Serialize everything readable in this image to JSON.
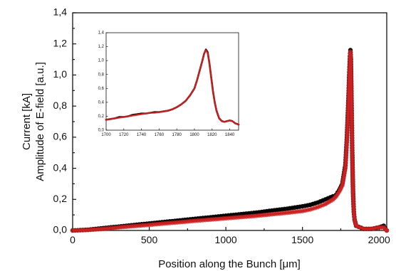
{
  "chart_data": [
    {
      "id": "main",
      "type": "scatter",
      "title": "",
      "xlabel": "Position along the Bunch [μm]",
      "ylabel_lines": [
        "Current [kA]",
        "Amplitude of E-field [a.u.]"
      ],
      "xlim": [
        0,
        2050
      ],
      "ylim": [
        0,
        1.4
      ],
      "xticks": [
        0,
        500,
        1000,
        1500,
        2000
      ],
      "xtick_labels": [
        "0",
        "500",
        "1000",
        "1500",
        "2000"
      ],
      "yticks": [
        0,
        0.2,
        0.4,
        0.6,
        0.8,
        1.0,
        1.2,
        1.4
      ],
      "ytick_labels": [
        "0,0",
        "0,2",
        "0,4",
        "0,6",
        "0,8",
        "1,0",
        "1,2",
        "1,4"
      ],
      "grid": false,
      "series": [
        {
          "color": "#000000",
          "x": [
            0,
            100,
            200,
            300,
            400,
            500,
            600,
            700,
            800,
            900,
            1000,
            1100,
            1200,
            1300,
            1400,
            1500,
            1550,
            1600,
            1650,
            1700,
            1720,
            1740,
            1760,
            1780,
            1790,
            1800,
            1805,
            1810,
            1813,
            1816,
            1820,
            1825,
            1830,
            1835,
            1840,
            1850,
            1900,
            1950,
            2000,
            2030,
            2050
          ],
          "y": [
            0.0,
            0.005,
            0.015,
            0.025,
            0.035,
            0.045,
            0.055,
            0.065,
            0.075,
            0.085,
            0.095,
            0.105,
            0.115,
            0.128,
            0.14,
            0.155,
            0.165,
            0.18,
            0.2,
            0.22,
            0.23,
            0.26,
            0.3,
            0.42,
            0.6,
            0.85,
            1.0,
            1.12,
            1.16,
            1.1,
            0.85,
            0.5,
            0.25,
            0.12,
            0.07,
            0.03,
            0.01,
            0.01,
            0.02,
            0.03,
            0.0
          ]
        },
        {
          "color": "#cc2222",
          "x": [
            0,
            100,
            200,
            300,
            400,
            500,
            600,
            700,
            800,
            900,
            1000,
            1100,
            1200,
            1300,
            1400,
            1500,
            1550,
            1600,
            1650,
            1700,
            1720,
            1740,
            1760,
            1780,
            1790,
            1800,
            1805,
            1810,
            1813,
            1816,
            1820,
            1825,
            1830,
            1835,
            1840,
            1850,
            1900,
            1950,
            2000,
            2030,
            2050
          ],
          "y": [
            0.0,
            0.003,
            0.01,
            0.02,
            0.028,
            0.036,
            0.045,
            0.053,
            0.062,
            0.07,
            0.078,
            0.086,
            0.094,
            0.104,
            0.114,
            0.125,
            0.135,
            0.15,
            0.17,
            0.2,
            0.22,
            0.25,
            0.29,
            0.4,
            0.58,
            0.82,
            0.98,
            1.1,
            1.15,
            1.08,
            0.82,
            0.48,
            0.24,
            0.12,
            0.07,
            0.03,
            0.01,
            0.01,
            0.02,
            0.02,
            0.0
          ]
        }
      ]
    },
    {
      "id": "inset",
      "type": "scatter",
      "title": "",
      "xlabel": "",
      "ylabel": "",
      "xlim": [
        1700,
        1850
      ],
      "ylim": [
        0,
        1.4
      ],
      "xticks": [
        1700,
        1720,
        1740,
        1760,
        1780,
        1800,
        1820,
        1840
      ],
      "xtick_labels": [
        "1700",
        "1720",
        "1740",
        "1760",
        "1780",
        "1800",
        "1820",
        "1840"
      ],
      "yticks": [
        0,
        0.2,
        0.4,
        0.6,
        0.8,
        1.0,
        1.2,
        1.4
      ],
      "ytick_labels": [
        "0,0",
        "0,2",
        "0,4",
        "0,6",
        "0,8",
        "1,0",
        "1,2",
        "1,4"
      ],
      "grid": false,
      "series": [
        {
          "color": "#000000",
          "x": [
            1700,
            1705,
            1710,
            1715,
            1720,
            1725,
            1730,
            1735,
            1740,
            1745,
            1750,
            1755,
            1760,
            1765,
            1770,
            1775,
            1780,
            1785,
            1790,
            1795,
            1800,
            1803,
            1806,
            1809,
            1811,
            1813,
            1815,
            1817,
            1819,
            1821,
            1823,
            1825,
            1828,
            1831,
            1834,
            1837,
            1840,
            1843,
            1846,
            1850
          ],
          "y": [
            0.15,
            0.16,
            0.17,
            0.19,
            0.19,
            0.2,
            0.22,
            0.23,
            0.24,
            0.24,
            0.25,
            0.26,
            0.26,
            0.27,
            0.28,
            0.3,
            0.33,
            0.37,
            0.42,
            0.5,
            0.6,
            0.72,
            0.86,
            1.0,
            1.1,
            1.16,
            1.12,
            0.96,
            0.76,
            0.56,
            0.4,
            0.28,
            0.17,
            0.13,
            0.12,
            0.13,
            0.14,
            0.13,
            0.1,
            0.08
          ]
        },
        {
          "color": "#cc2222",
          "x": [
            1700,
            1705,
            1710,
            1715,
            1720,
            1725,
            1730,
            1735,
            1740,
            1745,
            1750,
            1755,
            1760,
            1765,
            1770,
            1775,
            1780,
            1785,
            1790,
            1795,
            1800,
            1803,
            1806,
            1809,
            1811,
            1813,
            1815,
            1817,
            1819,
            1821,
            1823,
            1825,
            1828,
            1831,
            1834,
            1837,
            1840,
            1843,
            1846,
            1850
          ],
          "y": [
            0.15,
            0.16,
            0.17,
            0.18,
            0.19,
            0.2,
            0.21,
            0.22,
            0.23,
            0.24,
            0.25,
            0.25,
            0.26,
            0.27,
            0.28,
            0.3,
            0.33,
            0.37,
            0.42,
            0.5,
            0.6,
            0.72,
            0.86,
            1.0,
            1.1,
            1.15,
            1.11,
            0.95,
            0.75,
            0.55,
            0.4,
            0.28,
            0.17,
            0.13,
            0.12,
            0.13,
            0.14,
            0.13,
            0.1,
            0.08
          ]
        }
      ]
    }
  ]
}
